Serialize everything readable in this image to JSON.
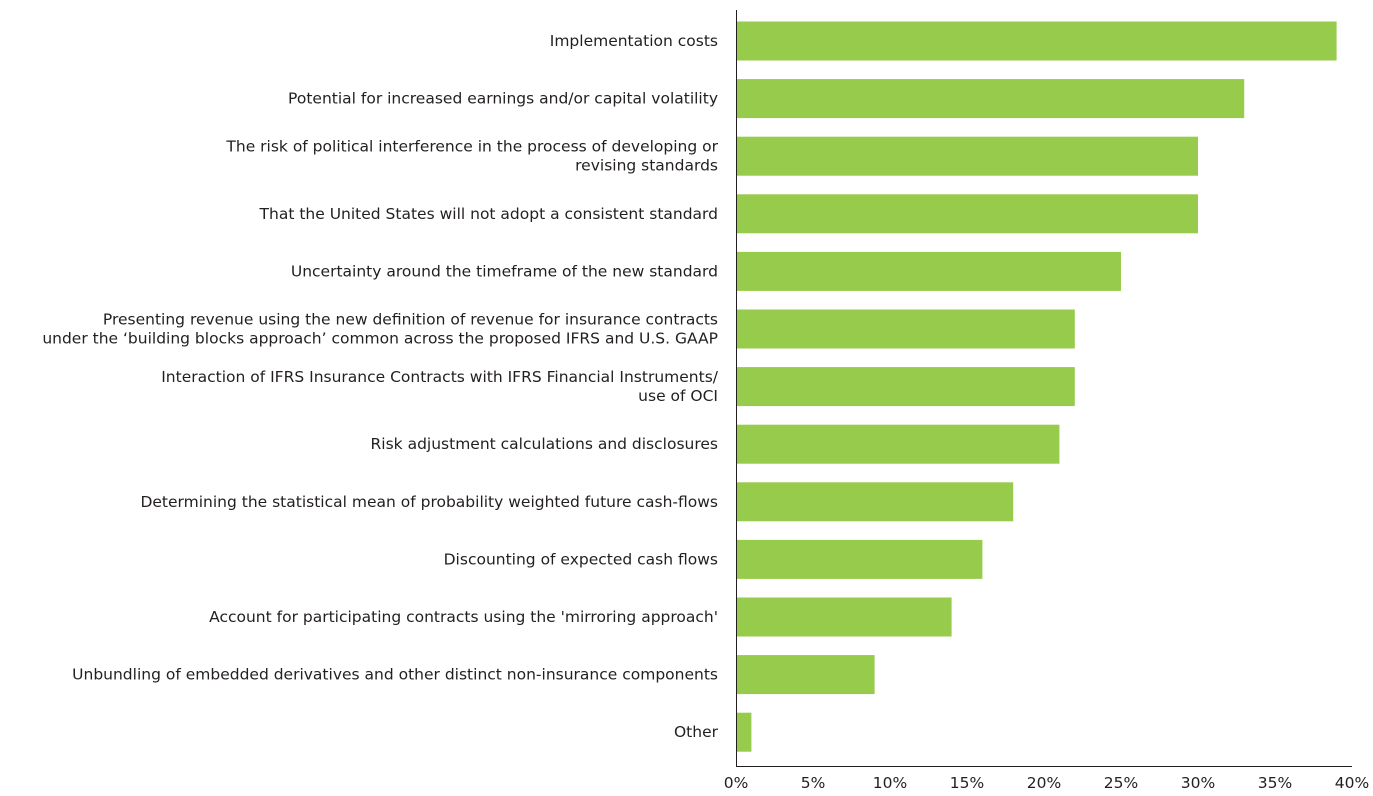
{
  "chart_data": {
    "type": "bar",
    "orientation": "horizontal",
    "bar_color": "#97cb4c",
    "axis_color": "#231f20",
    "title": "",
    "xlabel": "",
    "ylabel": "",
    "xlim": [
      0,
      40
    ],
    "grid": false,
    "legend": "none",
    "categories": [
      [
        "Implementation costs"
      ],
      [
        "Potential for increased earnings and/or capital volatility"
      ],
      [
        "The risk of political interference in the process of developing or",
        "revising standards"
      ],
      [
        "That the United States will not adopt a consistent standard"
      ],
      [
        "Uncertainty around the timeframe of the new standard"
      ],
      [
        "Presenting revenue using the new definition of revenue for insurance contracts",
        "under the ‘building blocks approach’ common across the proposed IFRS and U.S. GAAP"
      ],
      [
        "Interaction of IFRS Insurance Contracts with IFRS Financial Instruments/",
        "use of OCI"
      ],
      [
        "Risk adjustment calculations and disclosures"
      ],
      [
        "Determining the statistical mean of probability weighted future cash-flows"
      ],
      [
        "Discounting of expected cash flows"
      ],
      [
        "Account for participating contracts using the 'mirroring approach'"
      ],
      [
        "Unbundling of embedded derivatives and other distinct non-insurance components"
      ],
      [
        "Other"
      ]
    ],
    "values": [
      39,
      33,
      30,
      30,
      25,
      22,
      22,
      21,
      18,
      16,
      14,
      9,
      1
    ],
    "x_ticks": [
      0,
      5,
      10,
      15,
      20,
      25,
      30,
      35,
      40
    ],
    "x_tick_labels": [
      "0%",
      "5%",
      "10%",
      "15%",
      "20%",
      "25%",
      "30%",
      "35%",
      "40%"
    ]
  }
}
